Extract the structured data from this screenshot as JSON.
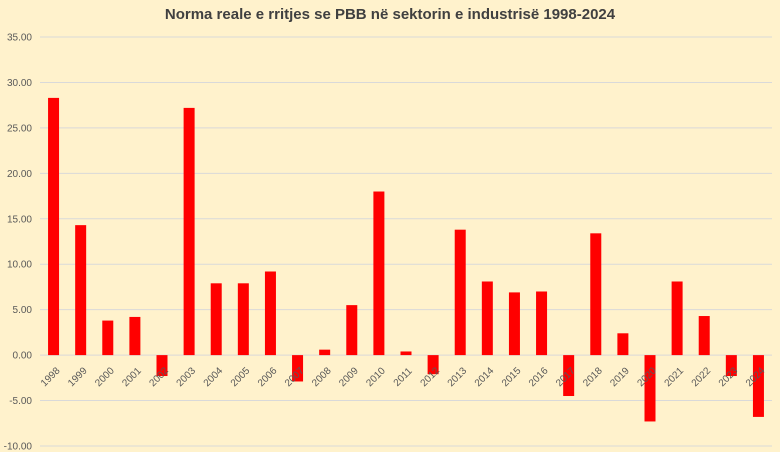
{
  "chart_data": {
    "type": "bar",
    "title": "Norma reale e rritjes se PBB në sektorin e industrisë 1998-2024",
    "xlabel": "",
    "ylabel": "",
    "categories": [
      "1998",
      "1999",
      "2000",
      "2001",
      "2002",
      "2003",
      "2004",
      "2005",
      "2006",
      "2007",
      "2008",
      "2009",
      "2010",
      "2011",
      "2012",
      "2013",
      "2014",
      "2015",
      "2016",
      "2017",
      "2018",
      "2019",
      "2020",
      "2021",
      "2022",
      "2023",
      "2024"
    ],
    "values": [
      28.3,
      14.3,
      3.8,
      4.2,
      -2.3,
      27.2,
      7.9,
      7.9,
      9.2,
      -2.9,
      0.6,
      5.5,
      18.0,
      0.4,
      -2.1,
      13.8,
      8.1,
      6.9,
      7.0,
      -4.5,
      13.4,
      2.4,
      -7.3,
      8.1,
      4.3,
      -2.3,
      -6.8
    ],
    "ylim": [
      -10,
      35
    ],
    "yticks": [
      "-10.00",
      "-5.00",
      "0.00",
      "5.00",
      "10.00",
      "15.00",
      "20.00",
      "25.00",
      "30.00",
      "35.00"
    ],
    "grid": true,
    "legend": "none",
    "bar_color": "#ff0000"
  }
}
